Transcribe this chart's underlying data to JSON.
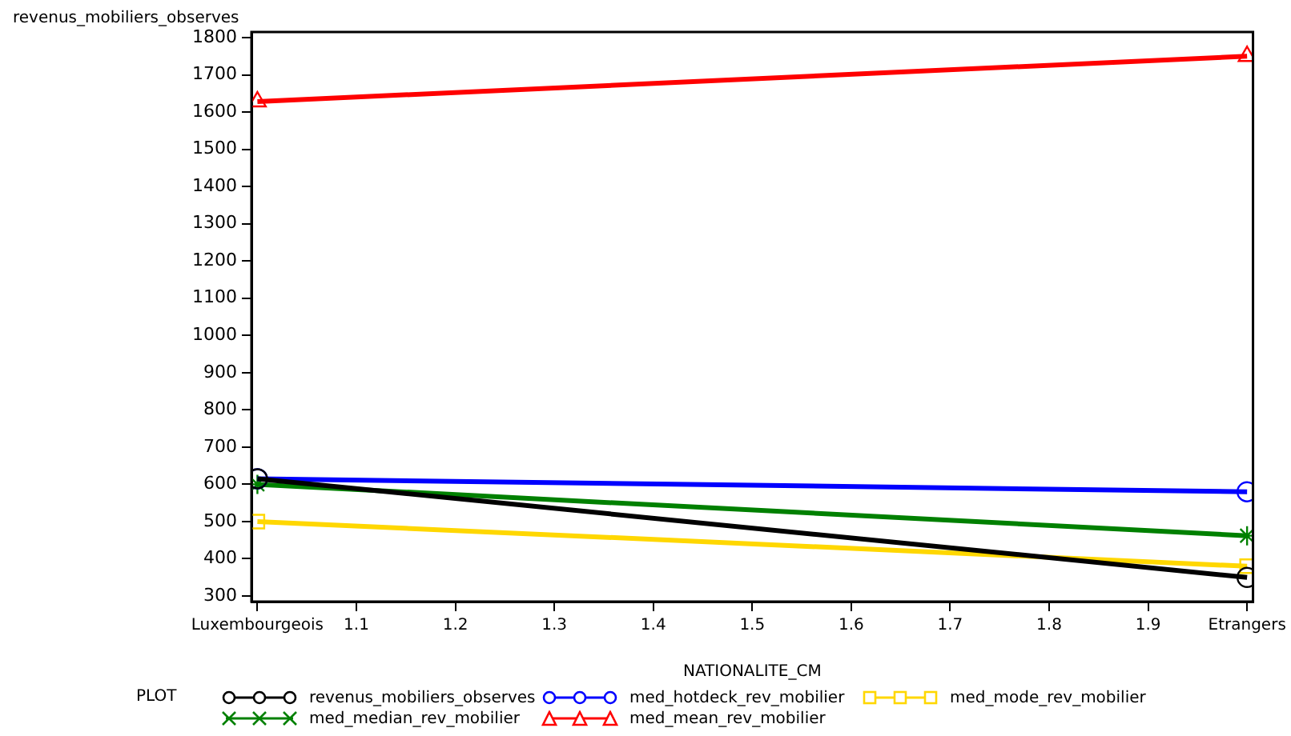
{
  "chart_data": {
    "type": "line",
    "ylabel": "revenus_mobiliers_observes",
    "xlabel": "NATIONALITE_CM",
    "legend_title": "PLOT",
    "legend": "bottom",
    "grid": false,
    "x": [
      1,
      2
    ],
    "xlim": [
      0.994,
      2.006
    ],
    "xticks": [
      {
        "value": 1,
        "label": "Luxembourgeois"
      },
      1.1,
      1.2,
      1.3,
      1.4,
      1.5,
      1.6,
      1.7,
      1.8,
      1.9,
      {
        "value": 2,
        "label": "Etrangers"
      }
    ],
    "ylim": [
      285,
      1815
    ],
    "yticks": [
      300,
      400,
      500,
      600,
      700,
      800,
      900,
      1000,
      1100,
      1200,
      1300,
      1400,
      1500,
      1600,
      1700,
      1800
    ],
    "series": [
      {
        "name": "revenus_mobiliers_observes",
        "color": "#000000",
        "marker": "circle",
        "values": [
          615,
          350
        ]
      },
      {
        "name": "med_hotdeck_rev_mobilier",
        "color": "#0000ff",
        "marker": "circle",
        "values": [
          615,
          580
        ]
      },
      {
        "name": "med_mode_rev_mobilier",
        "color": "#ffd700",
        "marker": "square",
        "values": [
          500,
          380
        ]
      },
      {
        "name": "med_median_rev_mobilier",
        "color": "#008000",
        "marker": "cross",
        "values": [
          600,
          462
        ]
      },
      {
        "name": "med_mean_rev_mobilier",
        "color": "#ff0000",
        "marker": "triangle",
        "values": [
          1628,
          1750
        ]
      }
    ]
  }
}
